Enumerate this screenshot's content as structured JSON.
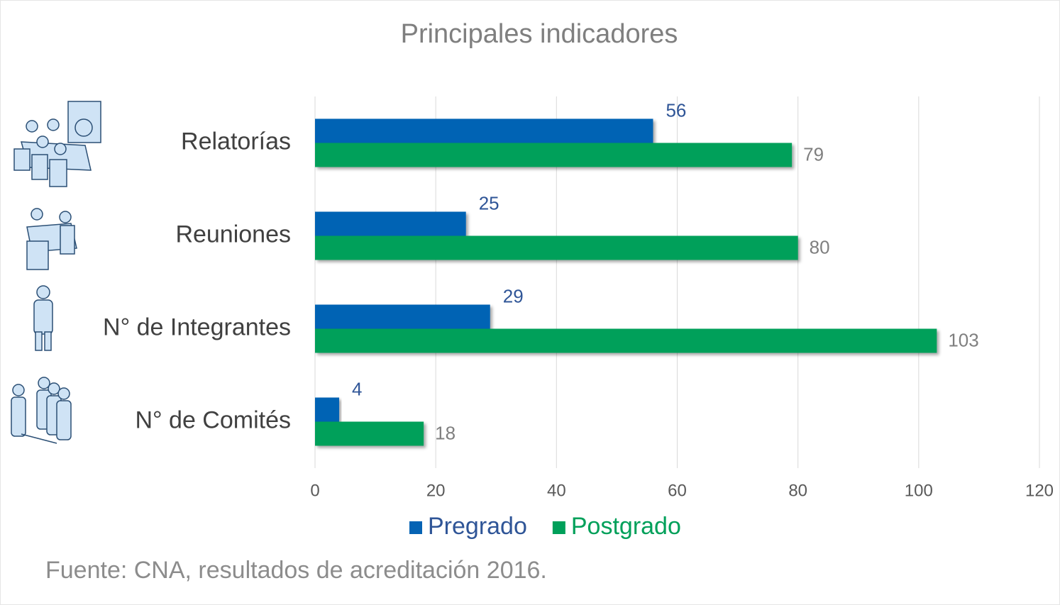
{
  "chart_data": {
    "type": "bar",
    "orientation": "horizontal",
    "title": "Principales indicadores",
    "categories": [
      "Relatorías",
      "Reuniones",
      "N° de Integrantes",
      "N° de Comités"
    ],
    "series": [
      {
        "name": "Pregrado",
        "color": "#0563b4",
        "values": [
          56,
          25,
          29,
          4
        ]
      },
      {
        "name": "Postgrado",
        "color": "#00a05a",
        "values": [
          79,
          80,
          103,
          18
        ]
      }
    ],
    "xlim": [
      0,
      120
    ],
    "xticks": [
      0,
      20,
      40,
      60,
      80,
      100,
      120
    ],
    "grid": true,
    "legend": "bottom",
    "source": "Fuente: CNA, resultados de acreditación 2016."
  }
}
